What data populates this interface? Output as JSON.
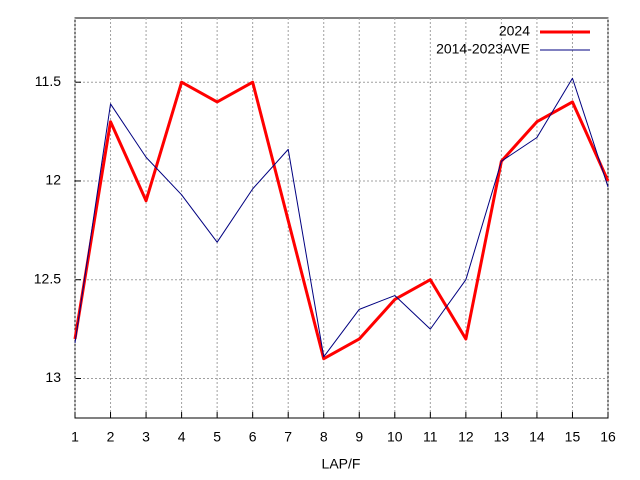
{
  "chart_data": {
    "type": "line",
    "xlabel": "LAP/F",
    "x": [
      1,
      2,
      3,
      4,
      5,
      6,
      7,
      8,
      9,
      10,
      11,
      12,
      13,
      14,
      15,
      16
    ],
    "xlim": [
      1,
      16
    ],
    "xticks": [
      1,
      2,
      3,
      4,
      5,
      6,
      7,
      8,
      9,
      10,
      11,
      12,
      13,
      14,
      15,
      16
    ],
    "ylim": [
      13.2,
      11.175
    ],
    "yticks": [
      11.5,
      12,
      12.5,
      13
    ],
    "grid": true,
    "legend": "top-right",
    "series": [
      {
        "name": "2024",
        "color": "#ff0000",
        "width": 3,
        "values": [
          12.8,
          11.7,
          12.1,
          11.5,
          11.6,
          11.5,
          12.2,
          12.9,
          12.8,
          12.6,
          12.5,
          12.8,
          11.9,
          11.7,
          11.6,
          12.0
        ]
      },
      {
        "name": "2014-2023AVE",
        "color": "#000080",
        "width": 1,
        "values": [
          12.82,
          11.61,
          11.88,
          12.07,
          12.31,
          12.04,
          11.84,
          12.89,
          12.65,
          12.58,
          12.75,
          12.5,
          11.9,
          11.78,
          11.48,
          12.03
        ]
      }
    ]
  }
}
